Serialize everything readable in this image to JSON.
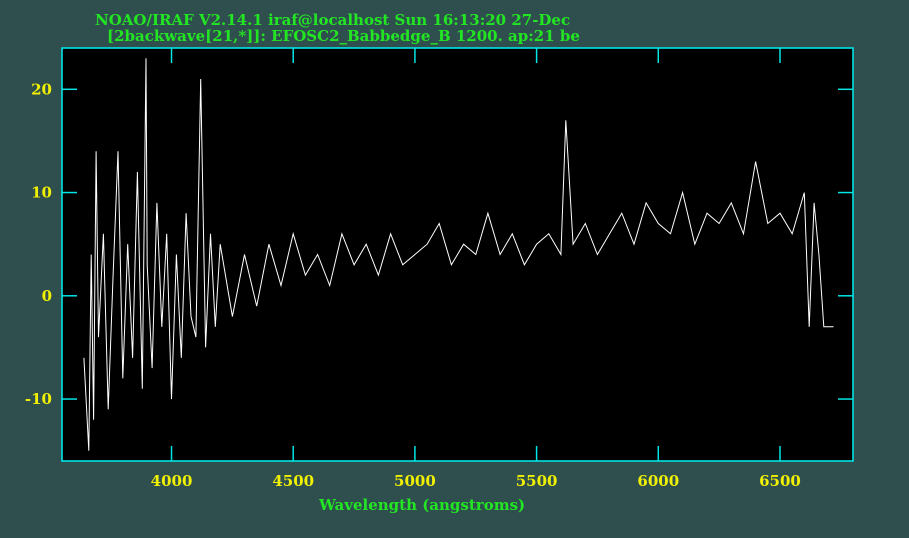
{
  "chart_data": {
    "type": "line",
    "title": "NOAO/IRAF V2.14.1 iraf@localhost Sun 16:13:20 27-Dec",
    "subtitle": "[2backwave[21,*]]: EFOSC2_Babbedge_B 1200. ap:21 be",
    "xlabel": "Wavelength (angstroms)",
    "ylabel": "",
    "xlim": [
      3550,
      6800
    ],
    "ylim": [
      -16,
      24
    ],
    "xticks": [
      4000,
      4500,
      5000,
      5500,
      6000,
      6500
    ],
    "xtick_labels": [
      "4000",
      "4500",
      "5000",
      "5500",
      "6000",
      "6500"
    ],
    "yticks": [
      -10,
      0,
      10,
      20
    ],
    "ytick_labels": [
      "-10",
      "0",
      "10",
      "20"
    ],
    "grid": false,
    "legend": "none",
    "colors": {
      "background": "#2f4f4f",
      "plot_area": "#000000",
      "frame": "#00e5e5",
      "spectrum": "#ffffff",
      "title_text": "#22e622",
      "tick_labels": "#f0f000"
    },
    "series": [
      {
        "x": [
          3640,
          3660,
          3670,
          3680,
          3690,
          3700,
          3720,
          3740,
          3760,
          3780,
          3800,
          3820,
          3840,
          3860,
          3880,
          3895,
          3900,
          3920,
          3940,
          3960,
          3980,
          4000,
          4020,
          4040,
          4060,
          4080,
          4100,
          4120,
          4140,
          4160,
          4180,
          4200,
          4250,
          4300,
          4350,
          4400,
          4450,
          4500,
          4550,
          4600,
          4650,
          4700,
          4750,
          4800,
          4850,
          4900,
          4950,
          5000,
          5050,
          5100,
          5150,
          5200,
          5250,
          5300,
          5350,
          5400,
          5450,
          5500,
          5550,
          5600,
          5620,
          5650,
          5700,
          5750,
          5800,
          5850,
          5900,
          5950,
          6000,
          6050,
          6100,
          6150,
          6200,
          6250,
          6300,
          6350,
          6400,
          6450,
          6500,
          6550,
          6600,
          6620,
          6640,
          6660,
          6680,
          6700,
          6720
        ],
        "y": [
          -6,
          -15,
          4,
          -12,
          14,
          -4,
          6,
          -11,
          2,
          14,
          -8,
          5,
          -6,
          12,
          -9,
          23,
          3,
          -7,
          9,
          -3,
          6,
          -10,
          4,
          -6,
          8,
          -2,
          -4,
          21,
          -5,
          6,
          -3,
          5,
          -2,
          4,
          -1,
          5,
          1,
          6,
          2,
          4,
          1,
          6,
          3,
          5,
          2,
          6,
          3,
          4,
          5,
          7,
          3,
          5,
          4,
          8,
          4,
          6,
          3,
          5,
          6,
          4,
          17,
          5,
          7,
          4,
          6,
          8,
          5,
          9,
          7,
          6,
          10,
          5,
          8,
          7,
          9,
          6,
          13,
          7,
          8,
          6,
          10,
          -3,
          9,
          4,
          -3,
          -3,
          -3
        ]
      }
    ]
  }
}
